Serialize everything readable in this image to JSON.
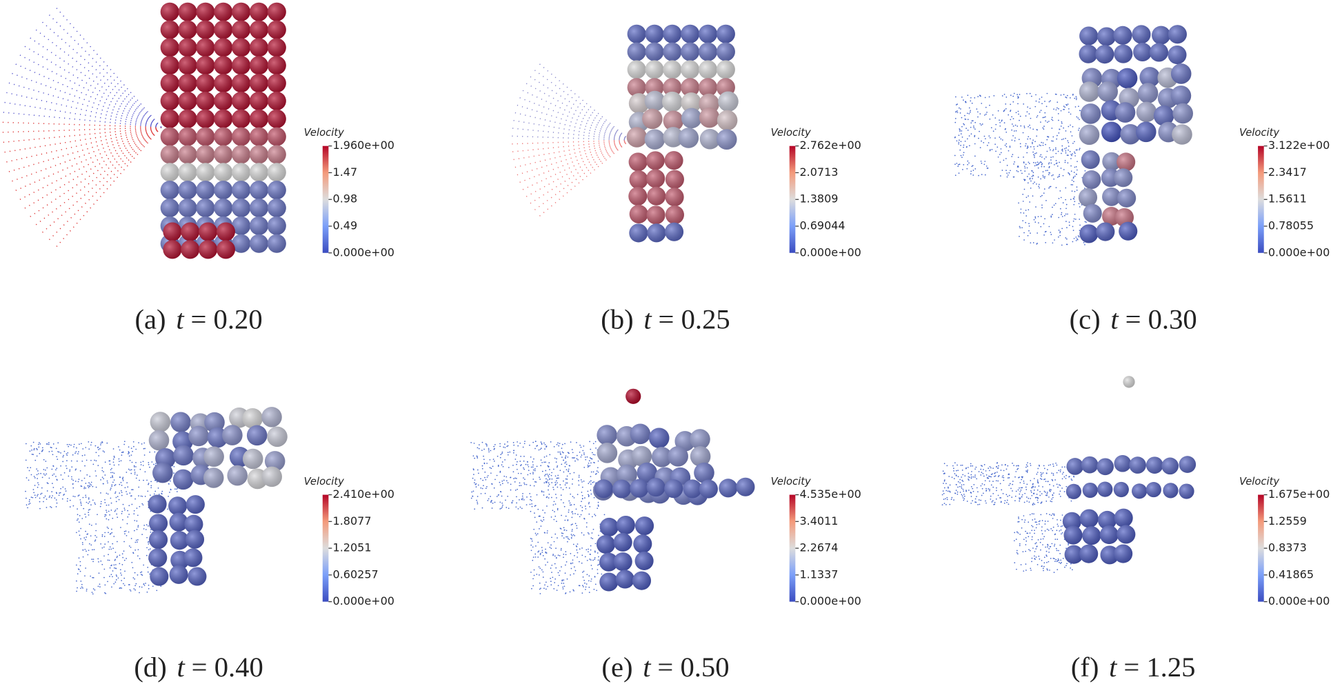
{
  "panels": [
    {
      "tag": "(a)",
      "symbol": "t",
      "equation": "= 0.20",
      "colorbar": {
        "title": "Velocity",
        "ticks": [
          "1.960e+00",
          "1.47",
          "0.98",
          "0.49",
          "0.000e+00"
        ]
      }
    },
    {
      "tag": "(b)",
      "symbol": "t",
      "equation": "= 0.25",
      "colorbar": {
        "title": "Velocity",
        "ticks": [
          "2.762e+00",
          "2.0713",
          "1.3809",
          "0.69044",
          "0.000e+00"
        ]
      }
    },
    {
      "tag": "(c)",
      "symbol": "t",
      "equation": "= 0.30",
      "colorbar": {
        "title": "Velocity",
        "ticks": [
          "3.122e+00",
          "2.3417",
          "1.5611",
          "0.78055",
          "0.000e+00"
        ]
      }
    },
    {
      "tag": "(d)",
      "symbol": "t",
      "equation": "= 0.40",
      "colorbar": {
        "title": "Velocity",
        "ticks": [
          "2.410e+00",
          "1.8077",
          "1.2051",
          "0.60257",
          "0.000e+00"
        ]
      }
    },
    {
      "tag": "(e)",
      "symbol": "t",
      "equation": "= 0.50",
      "colorbar": {
        "title": "Velocity",
        "ticks": [
          "4.535e+00",
          "3.4011",
          "2.2674",
          "1.1337",
          "0.000e+00"
        ]
      }
    },
    {
      "tag": "(f)",
      "symbol": "t",
      "equation": "= 1.25",
      "colorbar": {
        "title": "Velocity",
        "ticks": [
          "1.675e+00",
          "1.2559",
          "0.8373",
          "0.41865",
          "0.000e+00"
        ]
      }
    }
  ]
}
